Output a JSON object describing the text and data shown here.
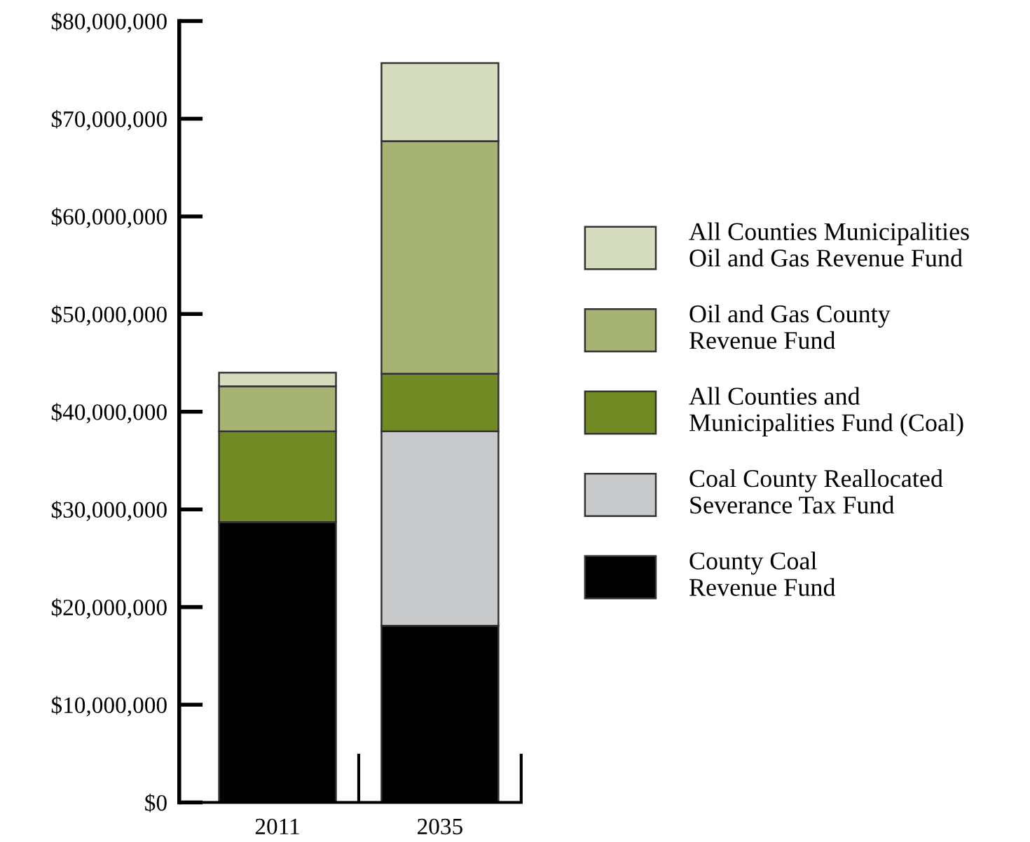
{
  "chart_data": {
    "type": "bar",
    "stacked": true,
    "categories": [
      "2011",
      "2035"
    ],
    "series": [
      {
        "name": "County Coal Revenue Fund",
        "color": "#000000",
        "values": [
          28700000,
          18100000
        ]
      },
      {
        "name": "Coal County Reallocated Severance Tax Fund",
        "color": "#c8c9cb",
        "values": [
          0,
          19900000
        ]
      },
      {
        "name": "All Counties and Municipalities Fund (Coal)",
        "color": "#728a24",
        "values": [
          9300000,
          5900000
        ]
      },
      {
        "name": "Oil and Gas County Revenue Fund",
        "color": "#a6b372",
        "values": [
          4600000,
          23800000
        ]
      },
      {
        "name": "All Counties Municipalities Oil and Gas Revenue Fund",
        "color": "#d6dcbe",
        "values": [
          1400000,
          8000000
        ]
      }
    ],
    "ylim": [
      0,
      80000000
    ],
    "yticks": [
      {
        "value": 0,
        "label": "$0"
      },
      {
        "value": 10000000,
        "label": "$10,000,000"
      },
      {
        "value": 20000000,
        "label": "$20,000,000"
      },
      {
        "value": 30000000,
        "label": "$30,000,000"
      },
      {
        "value": 40000000,
        "label": "$40,000,000"
      },
      {
        "value": 50000000,
        "label": "$50,000,000"
      },
      {
        "value": 60000000,
        "label": "$60,000,000"
      },
      {
        "value": 70000000,
        "label": "$70,000,000"
      },
      {
        "value": 80000000,
        "label": "$80,000,000"
      }
    ],
    "legend": "right",
    "grid": false
  }
}
